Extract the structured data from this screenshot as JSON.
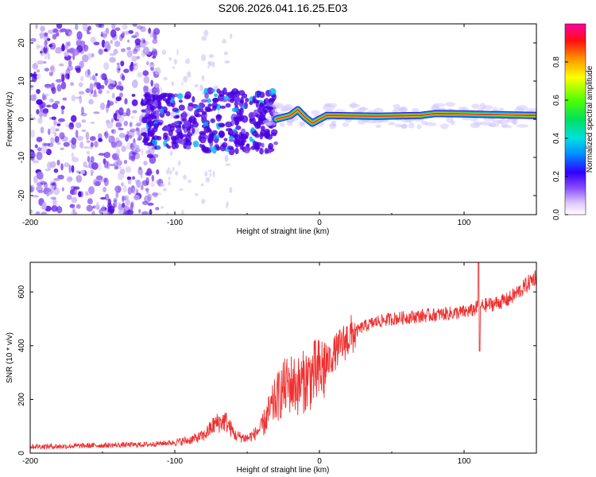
{
  "title": "S206.2026.041.16.25.E03",
  "chart_data": [
    {
      "type": "heatmap",
      "name": "spectrogram",
      "xlabel": "Height of straight line (km)",
      "ylabel": "Frequency (Hz)",
      "xlim": [
        -200,
        150
      ],
      "ylim": [
        -25,
        25
      ],
      "x_ticks": [
        "-200",
        "-100",
        "0",
        "100"
      ],
      "y_ticks": [
        "20",
        "10",
        "0",
        "-10",
        "-20"
      ],
      "colorbar": {
        "label": "Normalized spectral amplitude",
        "range": [
          0.0,
          1.0
        ],
        "ticks": [
          "0.0",
          "0.2",
          "0.4",
          "0.6",
          "0.8"
        ]
      },
      "ridge": {
        "description": "dominant narrow-band signal near 0-2 Hz",
        "points": [
          {
            "x": -30,
            "y": 0.0
          },
          {
            "x": -20,
            "y": 1.0
          },
          {
            "x": -15,
            "y": 2.5
          },
          {
            "x": -10,
            "y": 0.5
          },
          {
            "x": -5,
            "y": -1.0
          },
          {
            "x": 0,
            "y": 0.0
          },
          {
            "x": 5,
            "y": 1.0
          },
          {
            "x": 40,
            "y": 0.8
          },
          {
            "x": 70,
            "y": 1.0
          },
          {
            "x": 80,
            "y": 1.5
          },
          {
            "x": 100,
            "y": 1.4
          },
          {
            "x": 120,
            "y": 1.2
          },
          {
            "x": 150,
            "y": 1.0
          }
        ]
      }
    },
    {
      "type": "line",
      "name": "snr",
      "xlabel": "Height of straight line (km)",
      "ylabel": "SNR (10 * v/v)",
      "xlim": [
        -200,
        150
      ],
      "ylim": [
        0,
        710
      ],
      "x_ticks": [
        "-200",
        "-100",
        "0",
        "100"
      ],
      "y_ticks": [
        "0",
        "200",
        "400",
        "600"
      ],
      "color": "#ee3030",
      "series": [
        {
          "name": "SNR",
          "x": [
            -200,
            -180,
            -160,
            -140,
            -120,
            -100,
            -90,
            -80,
            -72,
            -65,
            -58,
            -50,
            -45,
            -40,
            -35,
            -30,
            -25,
            -20,
            -15,
            -10,
            -5,
            0,
            5,
            10,
            15,
            20,
            25,
            30,
            40,
            50,
            60,
            70,
            80,
            90,
            100,
            105,
            110,
            115,
            120,
            130,
            140,
            150
          ],
          "y": [
            25,
            25,
            28,
            30,
            32,
            40,
            48,
            65,
            110,
            120,
            65,
            55,
            70,
            95,
            150,
            200,
            240,
            260,
            250,
            270,
            290,
            300,
            330,
            370,
            400,
            430,
            450,
            470,
            490,
            500,
            505,
            510,
            515,
            520,
            525,
            530,
            545,
            550,
            555,
            570,
            610,
            660
          ]
        }
      ]
    }
  ]
}
